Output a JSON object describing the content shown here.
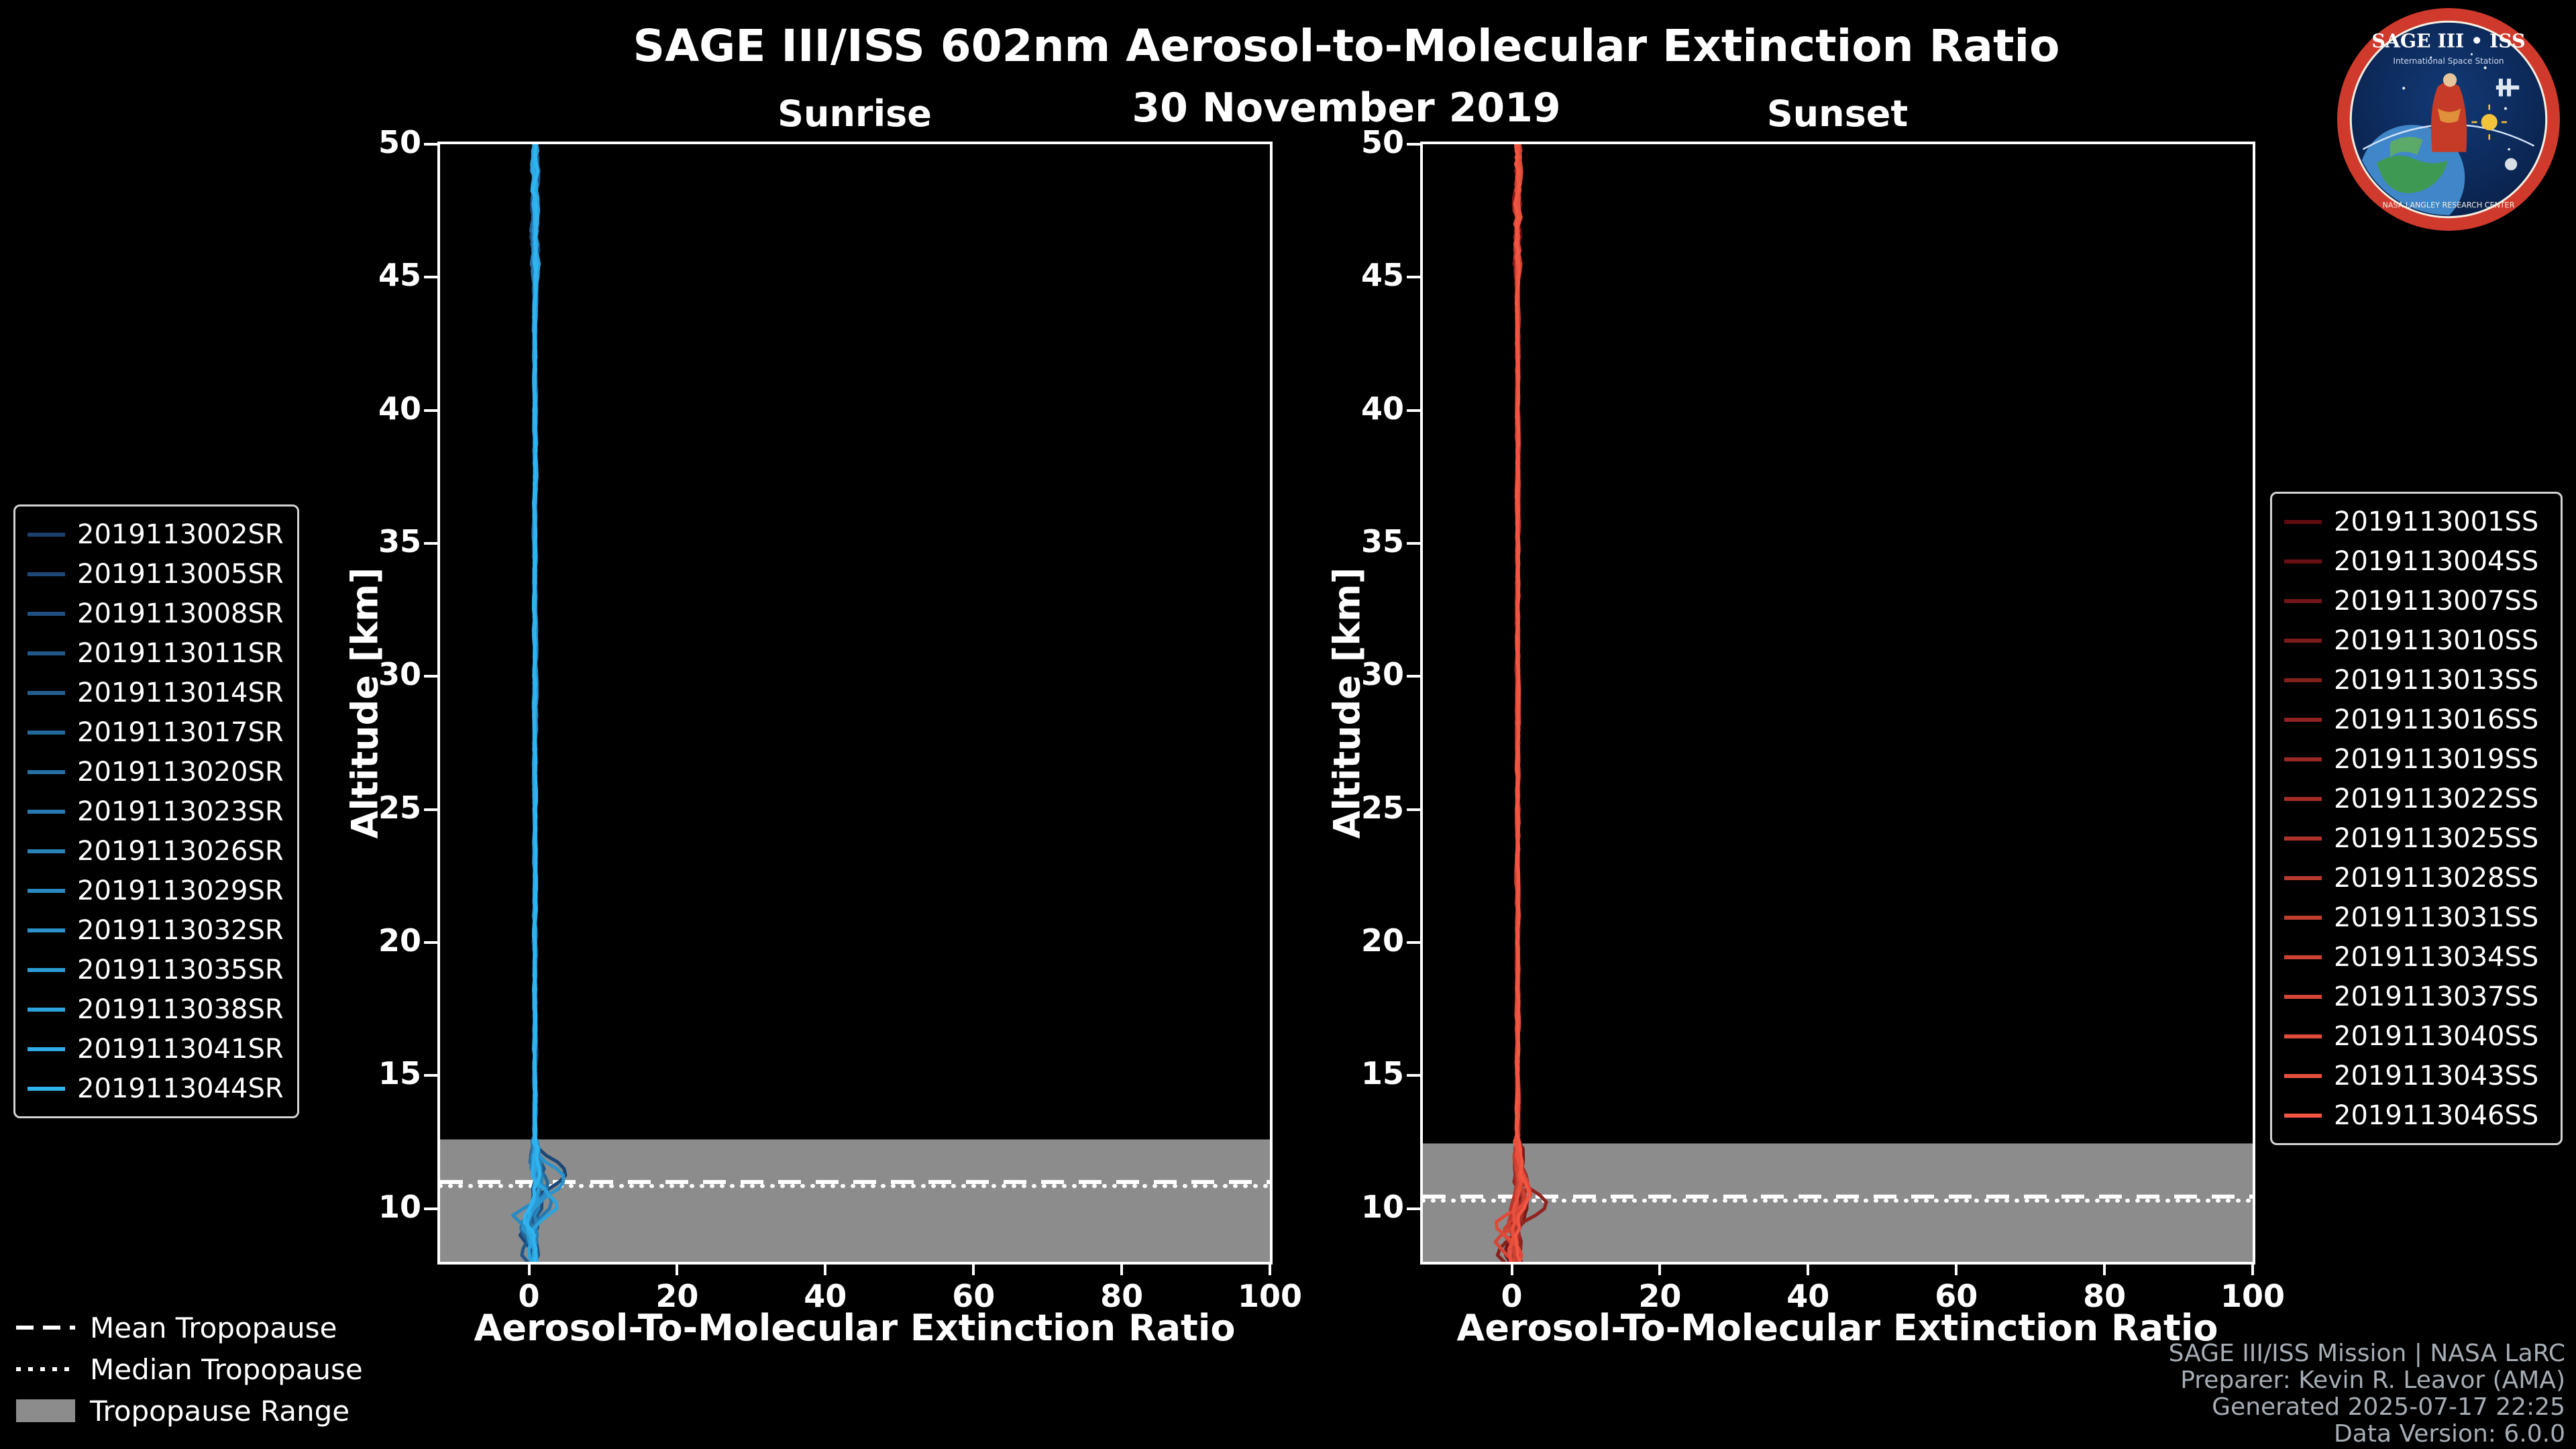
{
  "page": {
    "title": "SAGE III/ISS 602nm Aerosol-to-Molecular Extinction Ratio",
    "background": "#000000"
  },
  "logo": {
    "label": "SAGE III • ISS",
    "sublabel": "International Space Station",
    "org_text": "NASA LANGLEY RESEARCH CENTER",
    "ring_color": "#cf3a2c",
    "field_color": "#0e2b5e"
  },
  "tropopause_legend": {
    "mean_label": "Mean Tropopause",
    "median_label": "Median Tropopause",
    "range_label": "Tropopause Range",
    "range_color": "#8c8c8c",
    "line_color": "#ffffff"
  },
  "footer": {
    "credits": [
      "SAGE III/ISS Mission | NASA LaRC",
      "Preparer: Kevin R. Leavor (AMA)",
      "Generated 2025-07-17 22:25",
      "Data Version: 6.0.0"
    ]
  },
  "chart_data": {
    "type": "line",
    "title": "SAGE III/ISS 602nm Aerosol-to-Molecular Extinction Ratio",
    "subtitle": "30 November 2019",
    "xlabel": "Aerosol-To-Molecular Extinction Ratio",
    "ylabel": "Altitude [km]",
    "xlim": [
      -12,
      100
    ],
    "ylim": [
      8,
      50
    ],
    "x_ticks": [
      0,
      20,
      40,
      60,
      80,
      100
    ],
    "y_ticks": [
      10,
      15,
      20,
      25,
      30,
      35,
      40,
      45,
      50
    ],
    "grid": false,
    "legend_note": "one colored profile per event; colors ramp dark-to-bright in event order",
    "panels": [
      {
        "id": "sunrise",
        "title": "Sunrise",
        "color_ramp": [
          "#1c3f6e",
          "#30b4f0"
        ],
        "series": [
          "2019113002SR",
          "2019113005SR",
          "2019113008SR",
          "2019113011SR",
          "2019113014SR",
          "2019113017SR",
          "2019113020SR",
          "2019113023SR",
          "2019113026SR",
          "2019113029SR",
          "2019113032SR",
          "2019113035SR",
          "2019113038SR",
          "2019113041SR",
          "2019113044SR"
        ],
        "tropopause": {
          "mean_km": 11.0,
          "median_km": 10.85,
          "range_top_km": 12.6,
          "range_bottom_km": 8.0
        },
        "profile_model": {
          "description": "15 near-vertical extinction-ratio profiles clustered around ratio 0-2 from 8 to 50 km; small noise 12-45 km, larger wiggles above 45 km, spikes to about +4 and dips to about -4 between 8.5 and 12 km",
          "baseline_ratio": 0.8,
          "noise_amplitude_mid": 0.35,
          "noise_amplitude_top": 0.95,
          "noise_amplitude_bottom": 1.15,
          "representative_profile": [
            [
              50,
              1.0
            ],
            [
              48,
              1.3
            ],
            [
              45,
              0.9
            ],
            [
              40,
              0.8
            ],
            [
              35,
              0.8
            ],
            [
              30,
              0.8
            ],
            [
              25,
              0.7
            ],
            [
              20,
              0.8
            ],
            [
              15,
              0.8
            ],
            [
              12,
              1.0
            ],
            [
              11.4,
              3.5
            ],
            [
              10.5,
              1.2
            ],
            [
              9.2,
              -2.5
            ],
            [
              8.5,
              -0.5
            ],
            [
              8,
              0.3
            ]
          ]
        }
      },
      {
        "id": "sunset",
        "title": "Sunset",
        "color_ramp": [
          "#5e0c10",
          "#f25540"
        ],
        "series": [
          "2019113001SS",
          "2019113004SS",
          "2019113007SS",
          "2019113010SS",
          "2019113013SS",
          "2019113016SS",
          "2019113019SS",
          "2019113022SS",
          "2019113025SS",
          "2019113028SS",
          "2019113031SS",
          "2019113034SS",
          "2019113037SS",
          "2019113040SS",
          "2019113043SS",
          "2019113046SS"
        ],
        "tropopause": {
          "mean_km": 10.45,
          "median_km": 10.3,
          "range_top_km": 12.45,
          "range_bottom_km": 8.0
        },
        "profile_model": {
          "description": "16 near-vertical extinction-ratio profiles clustered around ratio 0-2 from 8 to 50 km; small noise 12-42 km, larger wiggles above 42 km, spike to about +5 near 10.9 km and dips to about -2 below 9 km",
          "baseline_ratio": 0.8,
          "noise_amplitude_mid": 0.35,
          "noise_amplitude_top": 0.95,
          "noise_amplitude_bottom": 1.15,
          "representative_profile": [
            [
              50,
              1.2
            ],
            [
              48,
              1.0
            ],
            [
              45,
              0.9
            ],
            [
              43,
              1.5
            ],
            [
              40,
              0.8
            ],
            [
              35,
              0.8
            ],
            [
              30,
              0.8
            ],
            [
              25,
              0.8
            ],
            [
              20,
              0.8
            ],
            [
              15,
              0.8
            ],
            [
              12,
              0.9
            ],
            [
              10.9,
              4.5
            ],
            [
              10.2,
              1.0
            ],
            [
              9.0,
              -1.5
            ],
            [
              8.3,
              -2.0
            ],
            [
              8,
              0.5
            ]
          ]
        }
      }
    ]
  }
}
